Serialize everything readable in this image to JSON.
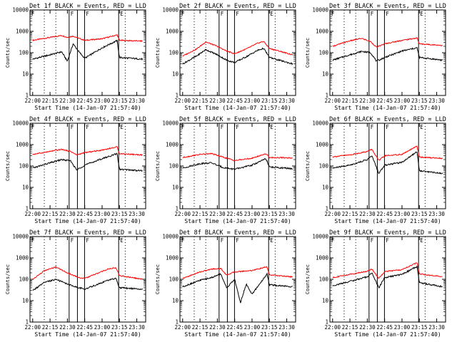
{
  "colors": {
    "events": "#000000",
    "lld": "#ff0000",
    "axis": "#000000",
    "background": "#ffffff"
  },
  "chart_data": [
    {
      "type": "line",
      "title": "Det 1f BLACK = Events, RED = LLD",
      "xlabel": "Start Time (14-Jan-07 21:57:40)",
      "ylabel": "Counts/sec",
      "x_ticks": [
        "22:00",
        "22:15",
        "22:30",
        "22:45",
        "23:00",
        "23:15",
        "23:30"
      ],
      "y_ticks": [
        "1",
        "10",
        "100",
        "1000",
        "10000"
      ],
      "ylim": [
        1,
        10000
      ],
      "yscale": "log",
      "markers": [
        "F",
        "F",
        "E"
      ],
      "series": [
        {
          "color": "#ff0000",
          "x": [
            "22:00",
            "22:15",
            "22:25",
            "22:30",
            "22:35",
            "22:40",
            "22:45",
            "23:00",
            "23:13",
            "23:15",
            "23:35"
          ],
          "y": [
            380,
            520,
            640,
            520,
            600,
            470,
            380,
            450,
            680,
            380,
            350
          ]
        },
        {
          "color": "#000000",
          "x": [
            "22:00",
            "22:15",
            "22:25",
            "22:30",
            "22:35",
            "22:40",
            "22:45",
            "23:00",
            "23:13",
            "23:15",
            "23:35"
          ],
          "y": [
            50,
            80,
            110,
            40,
            260,
            110,
            55,
            170,
            370,
            60,
            50
          ]
        }
      ]
    },
    {
      "type": "line",
      "title": "Det 2f BLACK = Events, RED = LLD",
      "xlabel": "Start Time (14-Jan-07 21:57:40)",
      "ylabel": "Counts/sec",
      "x_ticks": [
        "22:00",
        "22:15",
        "22:30",
        "22:45",
        "23:00",
        "23:15",
        "23:30"
      ],
      "y_ticks": [
        "1",
        "10",
        "100",
        "1000",
        "10000"
      ],
      "ylim": [
        1,
        10000
      ],
      "yscale": "log",
      "markers": [
        "F",
        "F",
        "E"
      ],
      "series": [
        {
          "color": "#ff0000",
          "x": [
            "22:00",
            "22:12",
            "22:20",
            "22:30",
            "22:38",
            "22:45",
            "22:55",
            "23:05",
            "23:10",
            "23:15",
            "23:35"
          ],
          "y": [
            70,
            150,
            320,
            200,
            120,
            90,
            150,
            280,
            340,
            160,
            80
          ]
        },
        {
          "color": "#000000",
          "x": [
            "22:00",
            "22:12",
            "22:20",
            "22:30",
            "22:38",
            "22:45",
            "22:55",
            "23:05",
            "23:10",
            "23:15",
            "23:35"
          ],
          "y": [
            30,
            70,
            140,
            80,
            45,
            35,
            65,
            130,
            160,
            60,
            30
          ]
        }
      ]
    },
    {
      "type": "line",
      "title": "Det 3f BLACK = Events, RED = LLD",
      "xlabel": "Start Time (14-Jan-07 21:57:40)",
      "ylabel": "Counts/sec",
      "x_ticks": [
        "22:00",
        "22:15",
        "22:30",
        "22:45",
        "23:00",
        "23:15",
        "23:30"
      ],
      "y_ticks": [
        "1",
        "10",
        "100",
        "1000",
        "10000"
      ],
      "ylim": [
        1,
        10000
      ],
      "yscale": "log",
      "markers": [
        "F",
        "F",
        "E"
      ],
      "series": [
        {
          "color": "#ff0000",
          "x": [
            "22:00",
            "22:15",
            "22:25",
            "22:33",
            "22:38",
            "22:45",
            "23:00",
            "23:13",
            "23:15",
            "23:35"
          ],
          "y": [
            200,
            360,
            470,
            330,
            180,
            260,
            380,
            490,
            260,
            220
          ]
        },
        {
          "color": "#000000",
          "x": [
            "22:00",
            "22:15",
            "22:25",
            "22:33",
            "22:38",
            "22:45",
            "23:00",
            "23:13",
            "23:15",
            "23:35"
          ],
          "y": [
            45,
            80,
            115,
            100,
            40,
            60,
            120,
            170,
            60,
            45
          ]
        }
      ]
    },
    {
      "type": "line",
      "title": "Det 4f BLACK = Events, RED = LLD",
      "xlabel": "Start Time (14-Jan-07 21:57:40)",
      "ylabel": "Counts/sec",
      "x_ticks": [
        "22:00",
        "22:15",
        "22:30",
        "22:45",
        "23:00",
        "23:15",
        "23:30"
      ],
      "y_ticks": [
        "1",
        "10",
        "100",
        "1000",
        "10000"
      ],
      "ylim": [
        1,
        10000
      ],
      "yscale": "log",
      "markers": [
        "F",
        "F",
        "E"
      ],
      "series": [
        {
          "color": "#ff0000",
          "x": [
            "22:00",
            "22:15",
            "22:25",
            "22:33",
            "22:38",
            "22:45",
            "23:00",
            "23:13",
            "23:15",
            "23:35"
          ],
          "y": [
            350,
            480,
            600,
            480,
            330,
            420,
            560,
            780,
            380,
            330
          ]
        },
        {
          "color": "#000000",
          "x": [
            "22:00",
            "22:15",
            "22:25",
            "22:33",
            "22:38",
            "22:45",
            "23:00",
            "23:13",
            "23:15",
            "23:35"
          ],
          "y": [
            80,
            140,
            200,
            170,
            65,
            110,
            220,
            380,
            70,
            60
          ]
        }
      ]
    },
    {
      "type": "line",
      "title": "Det 5f BLACK = Events, RED = LLD",
      "xlabel": "Start Time (14-Jan-07 21:57:40)",
      "ylabel": "Counts/sec",
      "x_ticks": [
        "22:00",
        "22:15",
        "22:30",
        "22:45",
        "23:00",
        "23:15",
        "23:30"
      ],
      "y_ticks": [
        "1",
        "10",
        "100",
        "1000",
        "10000"
      ],
      "ylim": [
        1,
        10000
      ],
      "yscale": "log",
      "markers": [
        "F",
        "F",
        "E"
      ],
      "series": [
        {
          "color": "#ff0000",
          "x": [
            "22:00",
            "22:15",
            "22:25",
            "22:35",
            "22:45",
            "23:00",
            "23:12",
            "23:15",
            "23:35"
          ],
          "y": [
            250,
            350,
            380,
            260,
            180,
            230,
            380,
            250,
            240
          ]
        },
        {
          "color": "#000000",
          "x": [
            "22:00",
            "22:15",
            "22:25",
            "22:35",
            "22:45",
            "23:00",
            "23:12",
            "23:15",
            "23:35"
          ],
          "y": [
            80,
            130,
            140,
            85,
            70,
            110,
            220,
            90,
            75
          ]
        }
      ]
    },
    {
      "type": "line",
      "title": "Det 6f BLACK = Events, RED = LLD",
      "xlabel": "Start Time (14-Jan-07 21:57:40)",
      "ylabel": "Counts/sec",
      "x_ticks": [
        "22:00",
        "22:15",
        "22:30",
        "22:45",
        "23:00",
        "23:15",
        "23:30"
      ],
      "y_ticks": [
        "1",
        "10",
        "100",
        "1000",
        "10000"
      ],
      "ylim": [
        1,
        10000
      ],
      "yscale": "log",
      "markers": [
        "F",
        "F",
        "E"
      ],
      "series": [
        {
          "color": "#ff0000",
          "x": [
            "22:00",
            "22:15",
            "22:30",
            "22:34",
            "22:40",
            "22:45",
            "23:00",
            "23:13",
            "23:15",
            "23:35"
          ],
          "y": [
            270,
            330,
            480,
            600,
            180,
            300,
            350,
            850,
            260,
            230
          ]
        },
        {
          "color": "#000000",
          "x": [
            "22:00",
            "22:15",
            "22:30",
            "22:34",
            "22:40",
            "22:45",
            "23:00",
            "23:13",
            "23:15",
            "23:35"
          ],
          "y": [
            80,
            110,
            200,
            300,
            45,
            110,
            150,
            480,
            60,
            45
          ]
        }
      ]
    },
    {
      "type": "line",
      "title": "Det 7f BLACK = Events, RED = LLD",
      "xlabel": "Start Time (14-Jan-07 21:57:40)",
      "ylabel": "Counts/sec",
      "x_ticks": [
        "22:00",
        "22:15",
        "22:30",
        "22:45",
        "23:00",
        "23:15",
        "23:30"
      ],
      "y_ticks": [
        "1",
        "10",
        "100",
        "1000",
        "10000"
      ],
      "ylim": [
        1,
        10000
      ],
      "yscale": "log",
      "markers": [
        "F",
        "F",
        "E"
      ],
      "series": [
        {
          "color": "#ff0000",
          "x": [
            "22:00",
            "22:10",
            "22:20",
            "22:30",
            "22:40",
            "22:45",
            "22:55",
            "23:05",
            "23:12",
            "23:15",
            "23:35"
          ],
          "y": [
            100,
            250,
            380,
            200,
            120,
            110,
            180,
            300,
            350,
            150,
            100
          ]
        },
        {
          "color": "#000000",
          "x": [
            "22:00",
            "22:10",
            "22:20",
            "22:30",
            "22:40",
            "22:45",
            "22:55",
            "23:05",
            "23:12",
            "23:15",
            "23:35"
          ],
          "y": [
            30,
            70,
            100,
            60,
            40,
            35,
            55,
            90,
            110,
            40,
            35
          ]
        }
      ]
    },
    {
      "type": "line",
      "title": "Det 8f BLACK = Events, RED = LLD",
      "xlabel": "Start Time (14-Jan-07 21:57:40)",
      "ylabel": "Counts/sec",
      "x_ticks": [
        "22:00",
        "22:15",
        "22:30",
        "22:45",
        "23:00",
        "23:15",
        "23:30"
      ],
      "y_ticks": [
        "1",
        "10",
        "100",
        "1000",
        "10000"
      ],
      "ylim": [
        1,
        10000
      ],
      "yscale": "log",
      "markers": [
        "F",
        "F",
        "E"
      ],
      "series": [
        {
          "color": "#ff0000",
          "x": [
            "22:00",
            "22:15",
            "22:25",
            "22:33",
            "22:38",
            "22:45",
            "23:00",
            "23:13",
            "23:15",
            "23:35"
          ],
          "y": [
            110,
            220,
            300,
            320,
            160,
            220,
            260,
            380,
            160,
            130
          ]
        },
        {
          "color": "#000000",
          "x": [
            "22:00",
            "22:15",
            "22:25",
            "22:33",
            "22:38",
            "22:45",
            "22:50",
            "22:55",
            "23:00",
            "23:13",
            "23:15",
            "23:35"
          ],
          "y": [
            45,
            90,
            120,
            180,
            40,
            100,
            8,
            60,
            20,
            180,
            55,
            45
          ]
        }
      ]
    },
    {
      "type": "line",
      "title": "Det 9f BLACK = Events, RED = LLD",
      "xlabel": "Start Time (14-Jan-07 21:57:40)",
      "ylabel": "Counts/sec",
      "x_ticks": [
        "22:00",
        "22:15",
        "22:30",
        "22:45",
        "23:00",
        "23:15",
        "23:30"
      ],
      "y_ticks": [
        "1",
        "10",
        "100",
        "1000",
        "10000"
      ],
      "ylim": [
        1,
        10000
      ],
      "yscale": "log",
      "markers": [
        "F",
        "F",
        "E"
      ],
      "series": [
        {
          "color": "#ff0000",
          "x": [
            "22:00",
            "22:15",
            "22:30",
            "22:34",
            "22:40",
            "22:45",
            "23:00",
            "23:13",
            "23:15",
            "23:35"
          ],
          "y": [
            120,
            170,
            240,
            300,
            110,
            230,
            280,
            600,
            180,
            130
          ]
        },
        {
          "color": "#000000",
          "x": [
            "22:00",
            "22:15",
            "22:30",
            "22:34",
            "22:40",
            "22:45",
            "23:00",
            "23:13",
            "23:15",
            "23:35"
          ],
          "y": [
            50,
            80,
            130,
            200,
            40,
            120,
            170,
            400,
            70,
            45
          ]
        }
      ]
    }
  ]
}
